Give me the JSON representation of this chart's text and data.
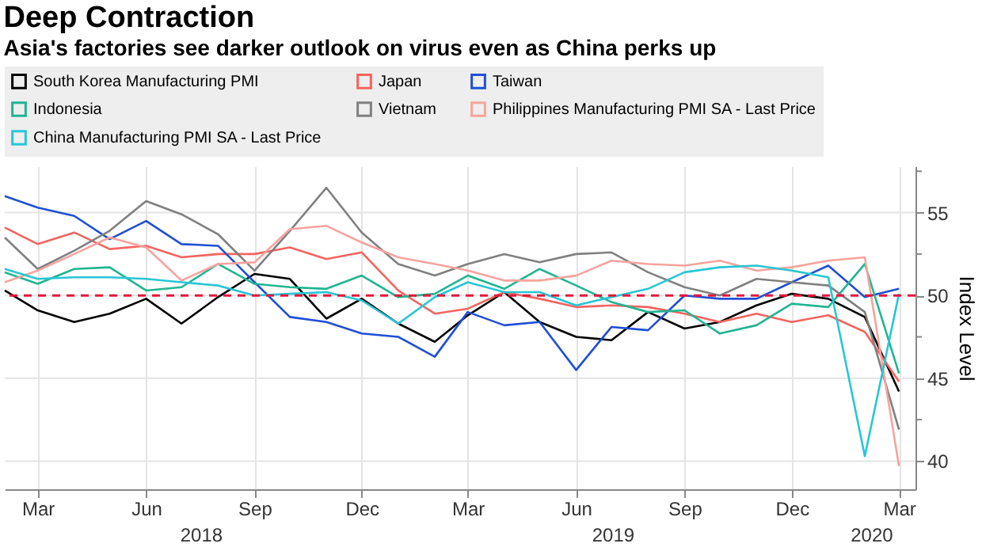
{
  "chart_data": {
    "type": "line",
    "title": "Deep Contraction",
    "subtitle": "Asia's factories see darker outlook on virus even as China perks up",
    "ylabel": "Index Level",
    "x": [
      "2018-02",
      "2018-03",
      "2018-04",
      "2018-05",
      "2018-06",
      "2018-07",
      "2018-08",
      "2018-09",
      "2018-10",
      "2018-11",
      "2018-12",
      "2019-01",
      "2019-02",
      "2019-03",
      "2019-04",
      "2019-05",
      "2019-06",
      "2019-07",
      "2019-08",
      "2019-09",
      "2019-10",
      "2019-11",
      "2019-12",
      "2020-01",
      "2020-02",
      "2020-03"
    ],
    "series": [
      {
        "name": "South Korea Manufacturing PMI",
        "color": "#000000",
        "values": [
          50.3,
          49.1,
          48.4,
          48.9,
          49.8,
          48.3,
          49.9,
          51.3,
          51.0,
          48.6,
          49.8,
          48.3,
          47.2,
          48.8,
          50.2,
          48.4,
          47.5,
          47.3,
          49.0,
          48.0,
          48.4,
          49.4,
          50.1,
          49.8,
          48.7,
          44.2
        ]
      },
      {
        "name": "Japan",
        "color": "#f4645f",
        "values": [
          54.1,
          53.1,
          53.8,
          52.8,
          53.0,
          52.3,
          52.5,
          52.5,
          52.9,
          52.2,
          52.6,
          50.3,
          48.9,
          49.2,
          50.2,
          49.8,
          49.3,
          49.4,
          49.3,
          48.9,
          48.4,
          48.9,
          48.4,
          48.8,
          47.8,
          44.8
        ]
      },
      {
        "name": "Taiwan",
        "color": "#1f4fd6",
        "values": [
          56.0,
          55.3,
          54.8,
          53.4,
          54.5,
          53.1,
          53.0,
          50.8,
          48.7,
          48.4,
          47.7,
          47.5,
          46.3,
          49.0,
          48.2,
          48.4,
          45.5,
          48.1,
          47.9,
          50.0,
          49.8,
          49.8,
          50.8,
          51.8,
          49.9,
          50.4
        ]
      },
      {
        "name": "Indonesia",
        "color": "#21b591",
        "values": [
          51.4,
          50.7,
          51.6,
          51.7,
          50.3,
          50.5,
          51.9,
          50.7,
          50.5,
          50.4,
          51.2,
          49.9,
          50.1,
          51.2,
          50.4,
          51.6,
          50.6,
          49.6,
          49.0,
          49.1,
          47.7,
          48.2,
          49.5,
          49.3,
          51.9,
          45.3
        ]
      },
      {
        "name": "Vietnam",
        "color": "#808080",
        "values": [
          53.5,
          51.6,
          52.7,
          53.9,
          55.7,
          54.9,
          53.7,
          51.5,
          53.9,
          56.5,
          53.8,
          51.9,
          51.2,
          51.9,
          52.5,
          52.0,
          52.5,
          52.6,
          51.4,
          50.5,
          50.0,
          51.0,
          50.8,
          50.6,
          49.0,
          41.9
        ]
      },
      {
        "name": "Philippines Manufacturing PMI SA - Last Price",
        "color": "#f7a39d",
        "values": [
          50.8,
          51.5,
          52.5,
          53.5,
          52.9,
          50.9,
          51.9,
          52.0,
          54.0,
          54.2,
          53.2,
          52.3,
          51.9,
          51.5,
          50.9,
          50.9,
          51.2,
          52.1,
          51.9,
          51.8,
          52.1,
          51.5,
          51.7,
          52.1,
          52.3,
          39.7
        ]
      },
      {
        "name": "China Manufacturing PMI SA - Last Price",
        "color": "#27c6d6",
        "values": [
          51.6,
          51.0,
          51.1,
          51.1,
          51.0,
          50.8,
          50.6,
          50.0,
          50.1,
          50.2,
          49.7,
          48.3,
          49.9,
          50.8,
          50.2,
          50.2,
          49.4,
          49.9,
          50.4,
          51.4,
          51.7,
          51.8,
          51.5,
          51.1,
          40.3,
          50.1
        ]
      }
    ],
    "xlim": [
      "2018-02-01",
      "2020-03-15"
    ],
    "xticks": [
      {
        "value": "2018-03",
        "label": "Mar"
      },
      {
        "value": "2018-06",
        "label": "Jun"
      },
      {
        "value": "2018-09",
        "label": "Sep"
      },
      {
        "value": "2018-12",
        "label": "Dec"
      },
      {
        "value": "2019-03",
        "label": "Mar"
      },
      {
        "value": "2019-06",
        "label": "Jun"
      },
      {
        "value": "2019-09",
        "label": "Sep"
      },
      {
        "value": "2019-12",
        "label": "Dec"
      },
      {
        "value": "2020-03",
        "label": "Mar"
      }
    ],
    "annotations": [
      "2018",
      "2019",
      "2020"
    ],
    "ylim": [
      38.3,
      57.8
    ],
    "yticks": [
      40,
      {
        "value": 42.5,
        "label": null
      },
      45,
      {
        "value": 47.5,
        "label": null
      },
      50,
      {
        "value": 52.5,
        "label": null
      },
      55,
      {
        "value": 57.5,
        "label": null
      }
    ],
    "ref_lines": [
      {
        "axis": "y",
        "value": 50,
        "color": "#e3183c",
        "line_style": "dashed"
      }
    ],
    "grid": true,
    "legend": "top",
    "marker": "none",
    "line_style": "solid"
  }
}
